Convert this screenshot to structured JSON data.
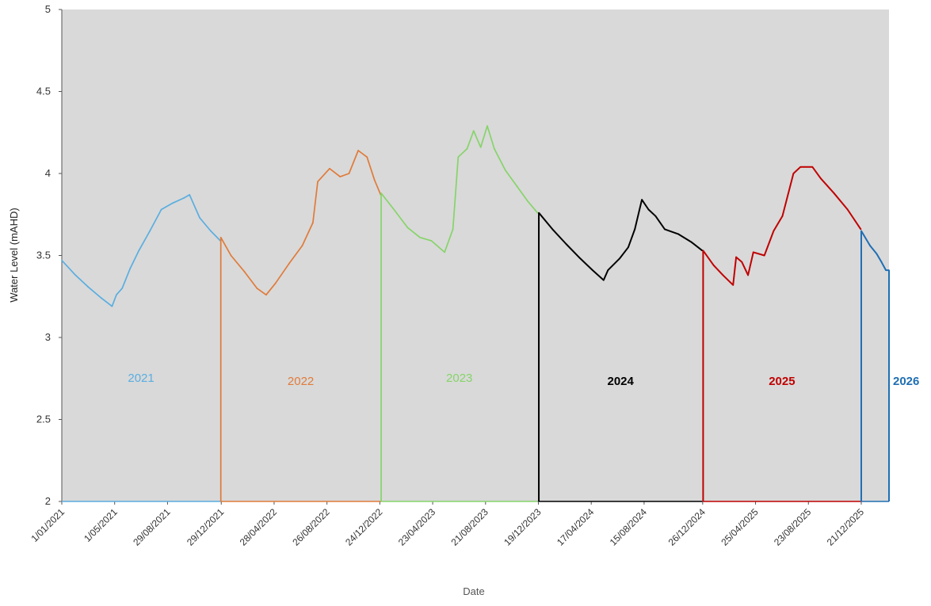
{
  "chart_data": {
    "type": "line",
    "title": "",
    "xlabel": "Date",
    "ylabel": "Water Level (mAHD)",
    "ylim": [
      2,
      5
    ],
    "y_ticks": [
      "2",
      "2.5",
      "3",
      "3.5",
      "4",
      "4.5",
      "5"
    ],
    "x_ticks": [
      "1/01/2021",
      "1/05/2021",
      "29/08/2021",
      "29/12/2021",
      "28/04/2022",
      "26/08/2022",
      "24/12/2022",
      "23/04/2023",
      "21/08/2023",
      "19/12/2023",
      "17/04/2024",
      "15/08/2024",
      "26/12/2024",
      "25/04/2025",
      "23/08/2025",
      "21/12/2025"
    ],
    "x_range": [
      "2021-01-01",
      "2026-02-22"
    ],
    "grid": false,
    "plot_background": "#d9d9d9",
    "series": [
      {
        "name": "2021",
        "color": "#5aaee0",
        "bold": false,
        "label_position": "upper-middle",
        "x": [
          "2021-01-01",
          "2021-02-01",
          "2021-03-01",
          "2021-04-01",
          "2021-04-25",
          "2021-05-05",
          "2021-05-18",
          "2021-06-05",
          "2021-06-25",
          "2021-07-20",
          "2021-08-15",
          "2021-09-10",
          "2021-10-05",
          "2021-10-18",
          "2021-11-10",
          "2021-12-05",
          "2021-12-27"
        ],
        "values": [
          3.47,
          3.38,
          3.31,
          3.24,
          3.19,
          3.26,
          3.3,
          3.42,
          3.53,
          3.65,
          3.78,
          3.82,
          3.85,
          3.87,
          3.73,
          3.65,
          3.59
        ]
      },
      {
        "name": "2022",
        "color": "#e07b3a",
        "bold": false,
        "label_position": "lower-middle",
        "x": [
          "2021-12-28",
          "2022-01-20",
          "2022-02-20",
          "2022-03-20",
          "2022-04-10",
          "2022-05-01",
          "2022-06-01",
          "2022-07-01",
          "2022-07-25",
          "2022-08-05",
          "2022-09-01",
          "2022-09-25",
          "2022-10-15",
          "2022-11-05",
          "2022-11-25",
          "2022-12-12",
          "2022-12-26"
        ],
        "values": [
          3.61,
          3.5,
          3.4,
          3.3,
          3.26,
          3.33,
          3.45,
          3.56,
          3.7,
          3.95,
          4.03,
          3.98,
          4.0,
          4.14,
          4.1,
          3.96,
          3.87
        ]
      },
      {
        "name": "2023",
        "color": "#86d46a",
        "bold": false,
        "label_position": "upper-middle",
        "x": [
          "2022-12-27",
          "2023-01-25",
          "2023-02-25",
          "2023-03-25",
          "2023-04-20",
          "2023-05-20",
          "2023-06-08",
          "2023-06-20",
          "2023-07-10",
          "2023-07-25",
          "2023-08-10",
          "2023-08-25",
          "2023-09-10",
          "2023-10-05",
          "2023-11-01",
          "2023-11-25",
          "2023-12-17"
        ],
        "values": [
          3.88,
          3.78,
          3.67,
          3.61,
          3.59,
          3.52,
          3.66,
          4.1,
          4.15,
          4.26,
          4.16,
          4.29,
          4.15,
          4.02,
          3.92,
          3.83,
          3.76
        ]
      },
      {
        "name": "2024",
        "color": "#000000",
        "bold": true,
        "label_position": "lower-middle",
        "x": [
          "2023-12-20",
          "2024-01-20",
          "2024-02-20",
          "2024-03-20",
          "2024-04-20",
          "2024-05-15",
          "2024-05-25",
          "2024-06-20",
          "2024-07-10",
          "2024-07-25",
          "2024-08-10",
          "2024-08-25",
          "2024-09-10",
          "2024-10-01",
          "2024-11-01",
          "2024-12-01",
          "2024-12-25"
        ],
        "values": [
          3.76,
          3.66,
          3.57,
          3.49,
          3.41,
          3.35,
          3.41,
          3.48,
          3.55,
          3.66,
          3.84,
          3.78,
          3.74,
          3.66,
          3.63,
          3.58,
          3.53
        ]
      },
      {
        "name": "2025",
        "color": "#c00000",
        "bold": true,
        "label_position": "lower-middle",
        "x": [
          "2024-12-27",
          "2025-01-20",
          "2025-02-10",
          "2025-03-05",
          "2025-03-12",
          "2025-03-25",
          "2025-04-08",
          "2025-04-20",
          "2025-05-15",
          "2025-06-05",
          "2025-06-25",
          "2025-07-20",
          "2025-08-05",
          "2025-09-01",
          "2025-09-20",
          "2025-10-20",
          "2025-11-20",
          "2025-12-20"
        ],
        "values": [
          3.53,
          3.44,
          3.38,
          3.32,
          3.49,
          3.46,
          3.38,
          3.52,
          3.5,
          3.65,
          3.74,
          4.0,
          4.04,
          4.04,
          3.97,
          3.88,
          3.78,
          3.66
        ]
      },
      {
        "name": "2026",
        "color": "#1f6fb4",
        "bold": true,
        "label_position": "right-edge",
        "x": [
          "2025-12-21",
          "2026-01-10",
          "2026-01-25",
          "2026-02-05",
          "2026-02-15",
          "2026-02-22"
        ],
        "values": [
          3.65,
          3.56,
          3.51,
          3.46,
          3.41,
          3.41
        ]
      }
    ]
  }
}
